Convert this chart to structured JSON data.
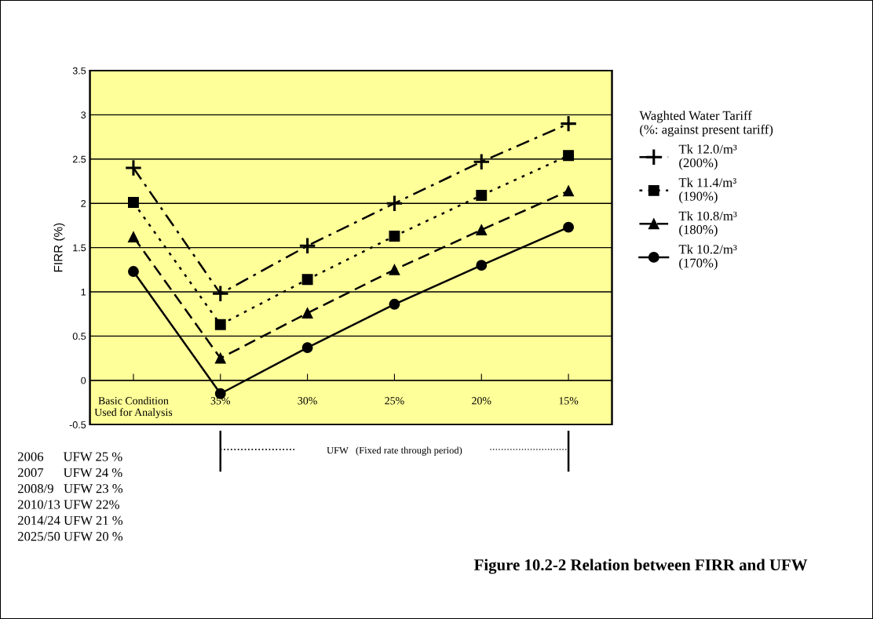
{
  "chart_data": {
    "type": "line",
    "title": "Figure 10.2-2 Relation between FIRR and UFW",
    "ylabel": "FIRR (%)",
    "legend_title": "Waghted Water Tariff\n(%: against present tariff)",
    "categories": [
      "Basic Condition\nUsed for Analysis",
      "35%",
      "30%",
      "25%",
      "20%",
      "15%"
    ],
    "series": [
      {
        "name": "Tk 12.0/m³\n(200%)",
        "color": "#000000",
        "marker": "cross",
        "line_style": "dashdot",
        "values": [
          2.4,
          0.98,
          1.52,
          2.0,
          2.47,
          2.9
        ]
      },
      {
        "name": "Tk 11.4/m³\n(190%)",
        "color": "#000000",
        "marker": "square",
        "line_style": "dotted",
        "values": [
          2.01,
          0.63,
          1.14,
          1.63,
          2.09,
          2.54
        ]
      },
      {
        "name": "Tk 10.8/m³\n(180%)",
        "color": "#000000",
        "marker": "triangle",
        "line_style": "dashed",
        "values": [
          1.62,
          0.25,
          0.76,
          1.25,
          1.7,
          2.14
        ]
      },
      {
        "name": "Tk 10.2/m³\n(170%)",
        "color": "#000000",
        "marker": "circle",
        "line_style": "solid",
        "values": [
          1.23,
          -0.15,
          0.37,
          0.86,
          1.3,
          1.73
        ]
      }
    ],
    "ylim": [
      -0.5,
      3.5
    ],
    "yticks": [
      -0.5,
      0,
      0.5,
      1,
      1.5,
      2,
      2.5,
      3,
      3.5
    ],
    "grid": "y",
    "legend": "right",
    "annotations": [
      {
        "text": "UFW   (Fixed rate through period)"
      },
      "2006      UFW 25 %\n2007      UFW 24 %\n2008/9   UFW 23 %\n2010/13 UFW 22%\n2014/24 UFW 21 %\n2025/50 UFW 20 %"
    ]
  }
}
